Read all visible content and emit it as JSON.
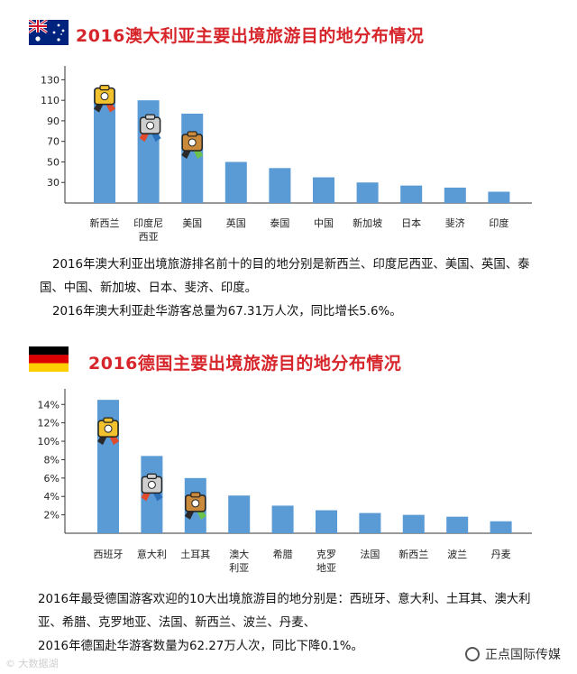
{
  "australia": {
    "title": "2016澳大利亚主要出境旅游目的地分布情况",
    "paragraph_1": "2016年澳大利亚出境旅游排名前十的目的地分别是新西兰、印度尼西亚、美国、英国、泰国、中国、新加坡、日本、斐济、印度。",
    "paragraph_2": "2016年澳大利亚赴华游客总量为67.31万人次，同比增长5.6%。"
  },
  "germany": {
    "title": "2016德国主要出境旅游目的地分布情况",
    "paragraph_1": "2016年最受德国游客欢迎的10大出境旅游目的地分别是：西班牙、意大利、土耳其、澳大利亚、希腊、克罗地亚、法国、新西兰、波兰、丹麦、",
    "paragraph_2": "2016年德国赴华游客数量为62.27万人次，同比下降0.1%。"
  },
  "watermark": {
    "left": "© 大数据湖",
    "right": "正点国际传媒"
  },
  "colors": {
    "bar": "#5b9bd5",
    "title": "#d7262b",
    "axis": "#333333"
  },
  "chart_data": [
    {
      "type": "bar",
      "title": "2016澳大利亚主要出境旅游目的地分布情况",
      "categories": [
        "新西兰",
        "印度尼西亚",
        "美国",
        "英国",
        "泰国",
        "中国",
        "新加坡",
        "日本",
        "斐济",
        "印度"
      ],
      "category_lines": [
        [
          "新西兰"
        ],
        [
          "印度尼",
          "西亚"
        ],
        [
          "美国"
        ],
        [
          "英国"
        ],
        [
          "泰国"
        ],
        [
          "中国"
        ],
        [
          "新加坡"
        ],
        [
          "日本"
        ],
        [
          "斐济"
        ],
        [
          "印度"
        ]
      ],
      "values": [
        121,
        110,
        97,
        50,
        44,
        35,
        30,
        27,
        25,
        21
      ],
      "yticks": [
        30,
        50,
        70,
        90,
        110,
        130
      ],
      "ylim": [
        10,
        140
      ],
      "ytick_suffix": "",
      "medals": [
        "gold",
        "silver",
        "bronze"
      ],
      "grid": false
    },
    {
      "type": "bar",
      "title": "2016德国主要出境旅游目的地分布情况",
      "categories": [
        "西班牙",
        "意大利",
        "土耳其",
        "澳大利亚",
        "希腊",
        "克罗地亚",
        "法国",
        "新西兰",
        "波兰",
        "丹麦"
      ],
      "category_lines": [
        [
          "西班牙"
        ],
        [
          "意大利"
        ],
        [
          "土耳其"
        ],
        [
          "澳大",
          "利亚"
        ],
        [
          "希腊"
        ],
        [
          "克罗",
          "地亚"
        ],
        [
          "法国"
        ],
        [
          "新西兰"
        ],
        [
          "波兰"
        ],
        [
          "丹麦"
        ]
      ],
      "values": [
        14.5,
        8.4,
        6.0,
        4.1,
        3.0,
        2.5,
        2.2,
        2.0,
        1.8,
        1.3
      ],
      "yticks": [
        2,
        4,
        6,
        8,
        10,
        12,
        14
      ],
      "ylim": [
        0,
        15.3
      ],
      "ytick_suffix": "%",
      "medals": [
        "gold",
        "silver",
        "bronze"
      ],
      "grid": false
    }
  ]
}
